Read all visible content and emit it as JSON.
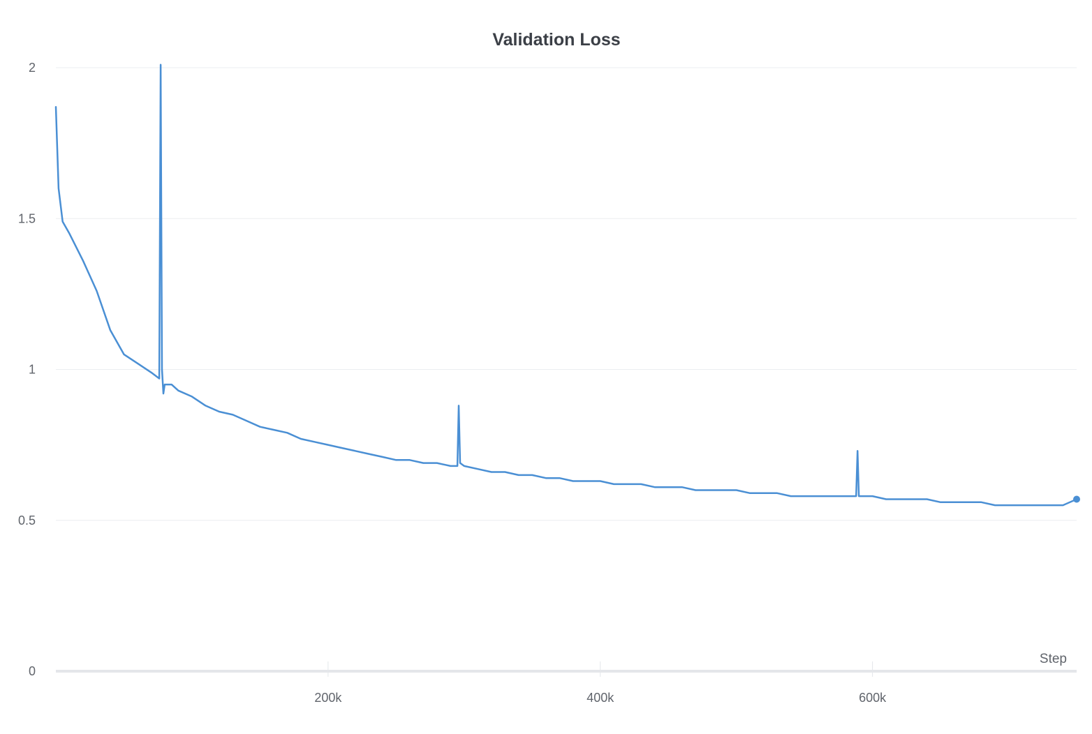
{
  "chart_data": {
    "type": "line",
    "title": "Validation Loss",
    "xlabel": "Step",
    "ylabel": "",
    "xlim": [
      0,
      750000
    ],
    "ylim": [
      0,
      2
    ],
    "x_ticks": [
      200000,
      400000,
      600000
    ],
    "x_tick_labels": [
      "200k",
      "400k",
      "600k"
    ],
    "y_ticks": [
      0,
      0.5,
      1,
      1.5,
      2
    ],
    "y_tick_labels": [
      "0",
      "0.5",
      "1",
      "1.5",
      "2"
    ],
    "grid": "horizontal",
    "legend": "none",
    "series": [
      {
        "color": "#4a8fd4",
        "x": [
          0,
          2000,
          5000,
          10000,
          20000,
          30000,
          40000,
          50000,
          60000,
          70000,
          76000,
          77000,
          78000,
          79000,
          80000,
          85000,
          90000,
          100000,
          110000,
          120000,
          130000,
          140000,
          150000,
          160000,
          170000,
          180000,
          190000,
          200000,
          210000,
          220000,
          230000,
          240000,
          250000,
          260000,
          270000,
          280000,
          290000,
          295000,
          296000,
          297000,
          300000,
          310000,
          320000,
          330000,
          340000,
          350000,
          360000,
          370000,
          380000,
          390000,
          400000,
          410000,
          420000,
          430000,
          440000,
          450000,
          460000,
          470000,
          480000,
          490000,
          500000,
          510000,
          520000,
          530000,
          540000,
          550000,
          560000,
          570000,
          580000,
          588000,
          589000,
          590000,
          600000,
          610000,
          620000,
          630000,
          640000,
          650000,
          660000,
          670000,
          680000,
          690000,
          700000,
          710000,
          720000,
          730000,
          740000,
          750000
        ],
        "y": [
          1.87,
          1.6,
          1.49,
          1.45,
          1.36,
          1.26,
          1.13,
          1.05,
          1.02,
          0.99,
          0.97,
          2.01,
          1.0,
          0.92,
          0.95,
          0.95,
          0.93,
          0.91,
          0.88,
          0.86,
          0.85,
          0.83,
          0.81,
          0.8,
          0.79,
          0.77,
          0.76,
          0.75,
          0.74,
          0.73,
          0.72,
          0.71,
          0.7,
          0.7,
          0.69,
          0.69,
          0.68,
          0.68,
          0.88,
          0.69,
          0.68,
          0.67,
          0.66,
          0.66,
          0.65,
          0.65,
          0.64,
          0.64,
          0.63,
          0.63,
          0.63,
          0.62,
          0.62,
          0.62,
          0.61,
          0.61,
          0.61,
          0.6,
          0.6,
          0.6,
          0.6,
          0.59,
          0.59,
          0.59,
          0.58,
          0.58,
          0.58,
          0.58,
          0.58,
          0.58,
          0.73,
          0.58,
          0.58,
          0.57,
          0.57,
          0.57,
          0.57,
          0.56,
          0.56,
          0.56,
          0.56,
          0.55,
          0.55,
          0.55,
          0.55,
          0.55,
          0.55,
          0.57
        ]
      }
    ]
  }
}
